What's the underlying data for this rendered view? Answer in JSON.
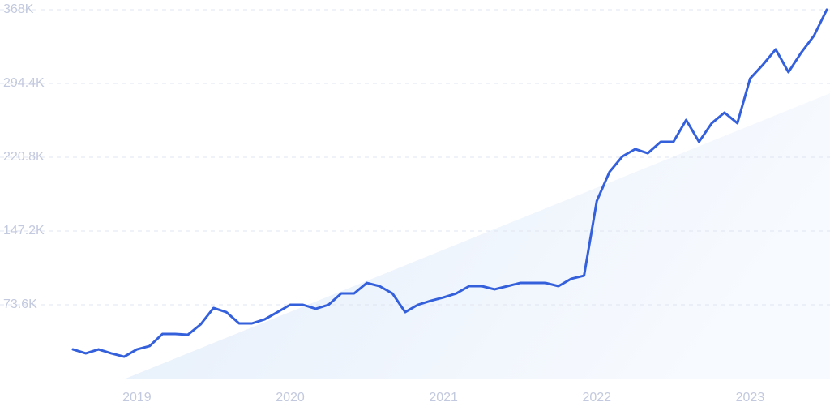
{
  "chart_data": {
    "type": "line",
    "x": [
      2018.583,
      2018.667,
      2018.75,
      2018.833,
      2018.917,
      2019,
      2019.083,
      2019.167,
      2019.25,
      2019.333,
      2019.417,
      2019.5,
      2019.583,
      2019.667,
      2019.75,
      2019.833,
      2019.917,
      2020,
      2020.083,
      2020.167,
      2020.25,
      2020.333,
      2020.417,
      2020.5,
      2020.583,
      2020.667,
      2020.75,
      2020.833,
      2020.917,
      2021,
      2021.083,
      2021.167,
      2021.25,
      2021.333,
      2021.417,
      2021.5,
      2021.583,
      2021.667,
      2021.75,
      2021.833,
      2021.917,
      2022,
      2022.083,
      2022.167,
      2022.25,
      2022.333,
      2022.417,
      2022.5,
      2022.583,
      2022.667,
      2022.75,
      2022.833,
      2022.917,
      2023,
      2023.083,
      2023.167,
      2023.25,
      2023.333,
      2023.417,
      2023.5
    ],
    "series": [
      {
        "color": "#3560dc",
        "values": [
          29100,
          25100,
          29100,
          25100,
          21800,
          29100,
          32400,
          44500,
          44500,
          43700,
          54200,
          70400,
          66300,
          55000,
          55000,
          59000,
          66300,
          73600,
          73600,
          69600,
          73600,
          84900,
          84900,
          95400,
          92200,
          84900,
          66300,
          73600,
          77600,
          80900,
          84900,
          92200,
          92200,
          89000,
          92200,
          95400,
          95400,
          95400,
          92200,
          99500,
          102700,
          177100,
          206200,
          221600,
          228900,
          224800,
          236200,
          236200,
          258000,
          236200,
          254800,
          265300,
          254800,
          299300,
          313000,
          328400,
          305700,
          325100,
          342100,
          368000
        ]
      }
    ],
    "xlim": [
      2018.583,
      2023.5
    ],
    "xticks": [
      2019,
      2020,
      2021,
      2022,
      2023
    ],
    "ylim": [
      0,
      368000
    ],
    "yticks": [
      {
        "value": 73600,
        "label": "73.6K"
      },
      {
        "value": 147200,
        "label": "147.2K"
      },
      {
        "value": 220800,
        "label": "220.8K"
      },
      {
        "value": 294400,
        "label": "294.4K"
      },
      {
        "value": 368000,
        "label": "368K"
      }
    ],
    "grid": true
  }
}
